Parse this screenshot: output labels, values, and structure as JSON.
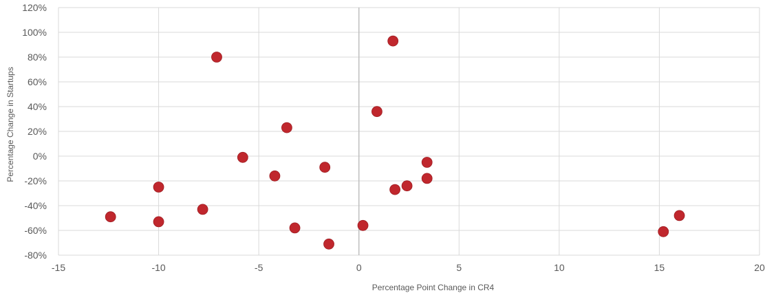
{
  "chart_data": {
    "type": "scatter",
    "title": "",
    "xlabel": "Percentage Point Change in CR4",
    "ylabel": "Percentage Change in Startups",
    "xlim": [
      -15,
      20
    ],
    "ylim": [
      -80,
      120
    ],
    "x_ticks": [
      -15,
      -10,
      -5,
      0,
      5,
      10,
      15,
      20
    ],
    "y_ticks": [
      -80,
      -60,
      -40,
      -20,
      0,
      20,
      40,
      60,
      80,
      100,
      120
    ],
    "x_tick_labels": [
      "-15",
      "-10",
      "-5",
      "0",
      "5",
      "10",
      "15",
      "20"
    ],
    "y_tick_labels": [
      "-80%",
      "-60%",
      "-40%",
      "-20%",
      "0%",
      "20%",
      "40%",
      "60%",
      "80%",
      "100%",
      "120%"
    ],
    "grid": "vertical and horizontal gridlines",
    "marker_color": "#c0272d",
    "series": [
      {
        "points": [
          {
            "x": -12.4,
            "y": -49
          },
          {
            "x": -10.0,
            "y": -25
          },
          {
            "x": -10.0,
            "y": -53
          },
          {
            "x": -7.8,
            "y": -43
          },
          {
            "x": -7.1,
            "y": 80
          },
          {
            "x": -5.8,
            "y": -1
          },
          {
            "x": -4.2,
            "y": -16
          },
          {
            "x": -3.6,
            "y": 23
          },
          {
            "x": -3.2,
            "y": -58
          },
          {
            "x": -1.7,
            "y": -9
          },
          {
            "x": -1.5,
            "y": -71
          },
          {
            "x": 0.2,
            "y": -56
          },
          {
            "x": 0.9,
            "y": 36
          },
          {
            "x": 1.7,
            "y": 93
          },
          {
            "x": 1.8,
            "y": -27
          },
          {
            "x": 2.4,
            "y": -24
          },
          {
            "x": 3.4,
            "y": -5
          },
          {
            "x": 3.4,
            "y": -18
          },
          {
            "x": 15.2,
            "y": -61
          },
          {
            "x": 16.0,
            "y": -48
          }
        ]
      }
    ]
  }
}
